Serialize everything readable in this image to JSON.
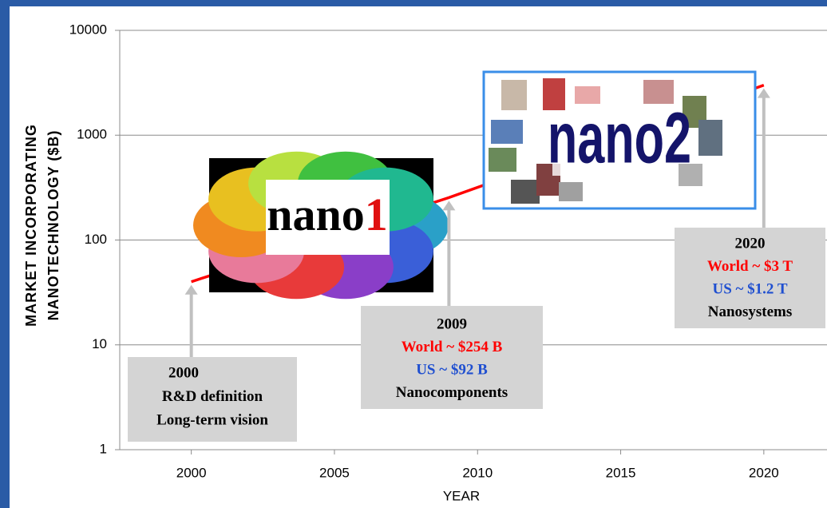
{
  "chart_data": {
    "type": "line",
    "ylabel": [
      "MARKET INCORPORATING",
      "NANOTECHNOLOGY  ($B)"
    ],
    "xlabel": "YEAR",
    "x": [
      2000,
      2009,
      2020
    ],
    "series": [
      {
        "color": "#ff0000",
        "values": [
          40,
          254,
          3000
        ]
      }
    ],
    "xlim": [
      1997.5,
      2022.5
    ],
    "xticks": [
      2000,
      2005,
      2010,
      2015,
      2020
    ],
    "ylim": [
      1,
      10000
    ],
    "yticks": [
      1,
      10,
      100,
      1000,
      10000
    ],
    "log_y": true,
    "grid": true,
    "annotations": [
      {
        "lines": [
          {
            "text": "2000",
            "color": "#000000"
          },
          {
            "text": "R&D definition",
            "color": "#000000"
          },
          {
            "text": "Long-term vision",
            "color": "#000000"
          }
        ]
      },
      {
        "lines": [
          {
            "text": "2009",
            "color": "#000000"
          },
          {
            "text": "World ~ $254 B",
            "color": "#ff0000"
          },
          {
            "text": "US ~ $92 B",
            "color": "#1f4fd0"
          },
          {
            "text": "Nanocomponents",
            "color": "#000000"
          }
        ]
      },
      {
        "lines": [
          {
            "text": "2020",
            "color": "#000000"
          },
          {
            "text": "World ~ $3 T",
            "color": "#ff0000"
          },
          {
            "text": "US ~ $1.2 T",
            "color": "#1f4fd0"
          },
          {
            "text": "Nanosystems",
            "color": "#000000"
          }
        ]
      }
    ],
    "images": [
      {
        "text": "nano",
        "accent": "1"
      },
      {
        "text": "nano",
        "accent": "2"
      }
    ]
  }
}
